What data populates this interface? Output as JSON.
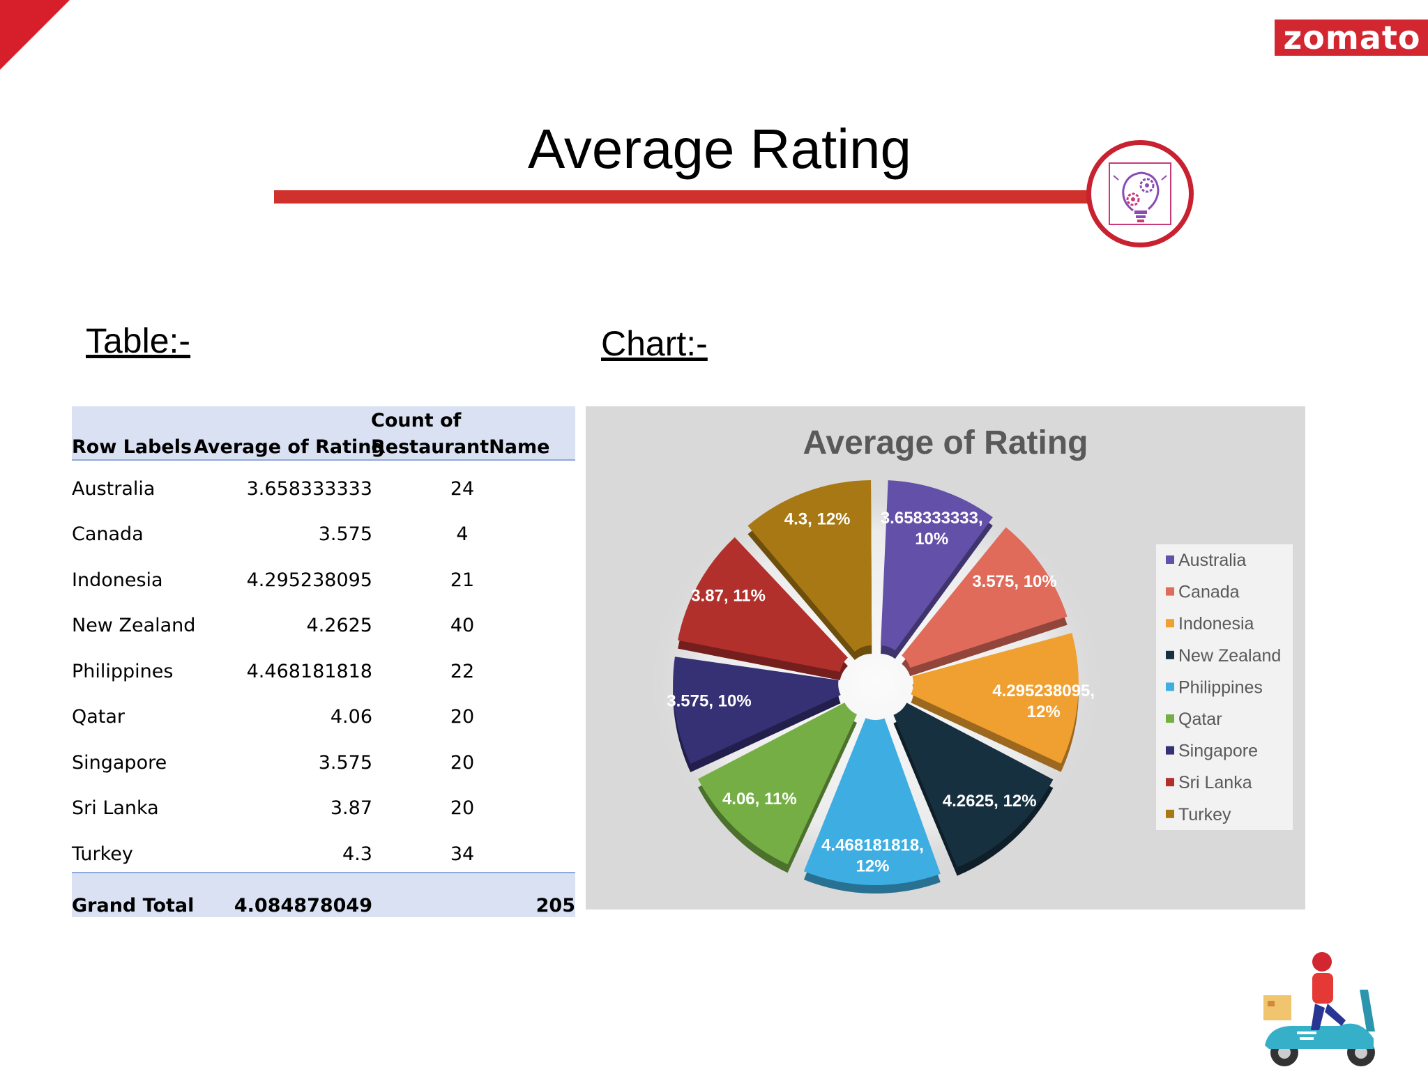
{
  "brand": {
    "logo_text": "zomato",
    "accent_color": "#d22630"
  },
  "slide": {
    "title": "Average Rating",
    "table_label": "Table:-",
    "chart_label": "Chart:-"
  },
  "icons": [
    "gear-lightbulb-icon",
    "delivery-scooter-icon"
  ],
  "table": {
    "headers": {
      "row_labels": "Row Labels",
      "average": "Average of Rating",
      "count_line1": "Count of",
      "count_line2": "RestaurantName"
    },
    "rows": [
      {
        "label": "Australia",
        "avg": "3.658333333",
        "count": "24"
      },
      {
        "label": "Canada",
        "avg": "3.575",
        "count": "4"
      },
      {
        "label": "Indonesia",
        "avg": "4.295238095",
        "count": "21"
      },
      {
        "label": "New Zealand",
        "avg": "4.2625",
        "count": "40"
      },
      {
        "label": "Philippines",
        "avg": "4.468181818",
        "count": "22"
      },
      {
        "label": "Qatar",
        "avg": "4.06",
        "count": "20"
      },
      {
        "label": "Singapore",
        "avg": "3.575",
        "count": "20"
      },
      {
        "label": "Sri Lanka",
        "avg": "3.87",
        "count": "20"
      },
      {
        "label": "Turkey",
        "avg": "4.3",
        "count": "34"
      }
    ],
    "total": {
      "label": "Grand Total",
      "avg": "4.084878049",
      "count": "205"
    }
  },
  "chart_data": {
    "type": "pie",
    "title": "Average of Rating",
    "categories": [
      "Australia",
      "Canada",
      "Indonesia",
      "New Zealand",
      "Philippines",
      "Qatar",
      "Singapore",
      "Sri Lanka",
      "Turkey"
    ],
    "values": [
      3.658333333,
      3.575,
      4.295238095,
      4.2625,
      4.468181818,
      4.06,
      3.575,
      3.87,
      4.3
    ],
    "value_labels": [
      "3.658333333,",
      "3.575, 10%",
      "4.295238095,",
      "4.2625, 12%",
      "4.468181818,",
      "4.06, 11%",
      "3.575, 10%",
      "3.87, 11%",
      "4.3, 12%"
    ],
    "value_labels_line2": [
      "10%",
      "",
      "12%",
      "",
      "12%",
      "",
      "",
      "",
      ""
    ],
    "colors": [
      "#6350a8",
      "#e06b5a",
      "#f0a030",
      "#17303f",
      "#3eaee2",
      "#74ae44",
      "#363075",
      "#b2302c",
      "#a77813"
    ],
    "legend_position": "right",
    "style": "doughnut-exploded-3d"
  }
}
